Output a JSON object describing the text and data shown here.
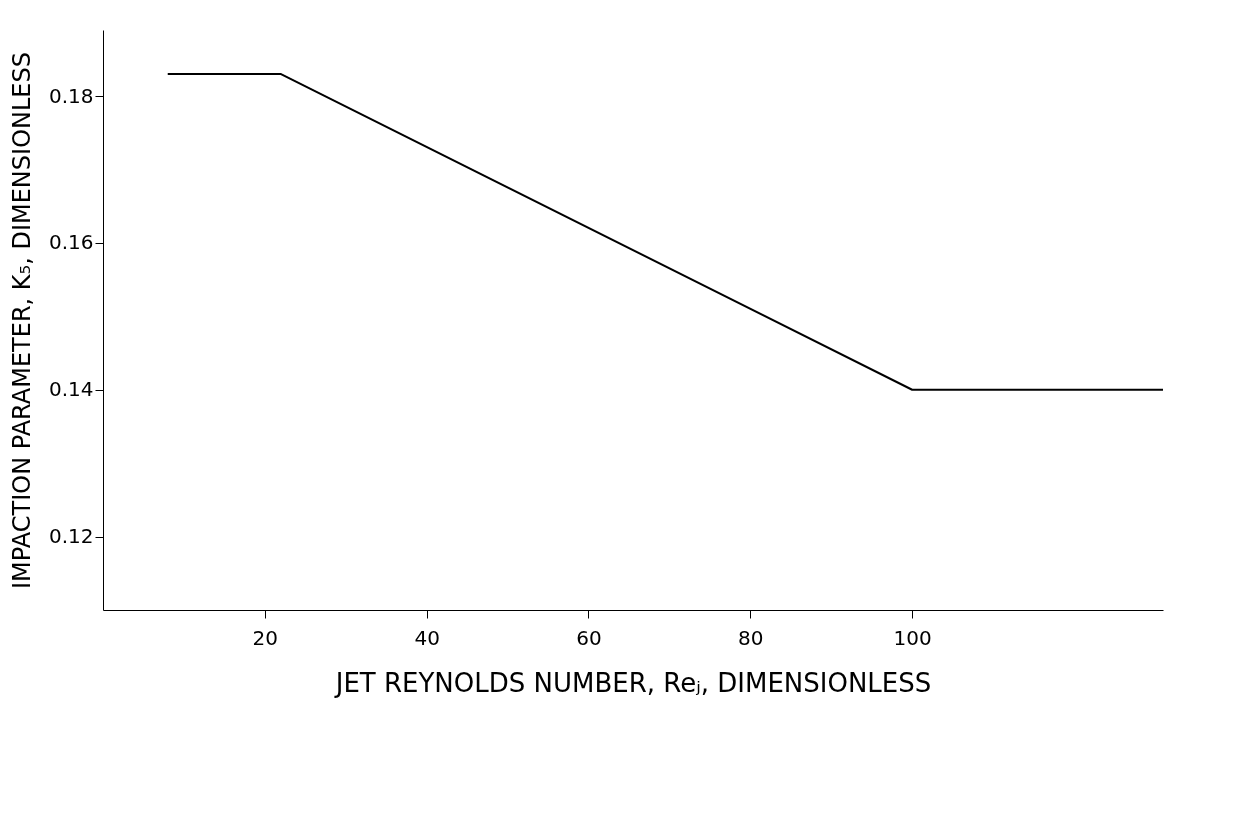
{
  "chart_data": {
    "type": "line",
    "xlabel": "JET REYNOLDS NUMBER, Reⱼ, DIMENSIONLESS",
    "ylabel": "IMPACTION PARAMETER, K₅, DIMENSIONLESS",
    "x": [
      8,
      22,
      100,
      131
    ],
    "series": [
      {
        "color": "#000000",
        "values": [
          0.183,
          0.183,
          0.14,
          0.14
        ]
      }
    ],
    "xlim": [
      0,
      131
    ],
    "ylim": [
      0.11,
      0.189
    ],
    "xticks": [
      20,
      40,
      60,
      80,
      100
    ],
    "yticks": [
      0.12,
      0.14,
      0.16,
      0.18
    ],
    "marker": "none",
    "line_style": "solid"
  }
}
